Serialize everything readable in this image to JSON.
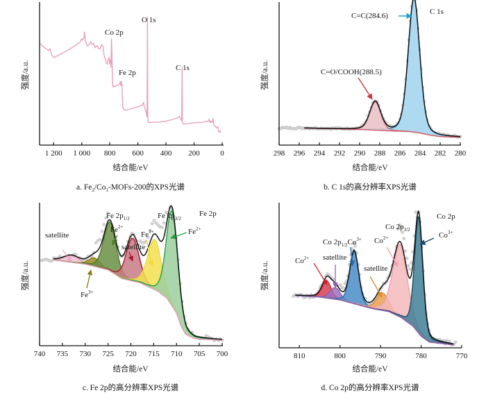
{
  "figure": {
    "y_axis_label": "强度/a.u.",
    "x_axis_label": "结合能/eV"
  },
  "chart_data": [
    {
      "id": "a",
      "type": "line",
      "title": "a.  Fe2/Co1-MOFs-200的XPS光谱",
      "caption_parts": [
        "a.  Fe",
        "2",
        "/Co",
        "1",
        "-MOFs-200的XPS光谱"
      ],
      "xlabel": "结合能/eV",
      "ylabel": "强度/a.u.",
      "xlim": [
        1300,
        0
      ],
      "xticks": [
        1200,
        1000,
        800,
        600,
        400,
        200,
        0
      ],
      "xtick_labels": [
        "1 200",
        "1 000",
        "800",
        "600",
        "400",
        "200",
        "0"
      ],
      "color": "#e8a2bd",
      "series": [
        {
          "name": "survey",
          "x": [
            1300,
            1280,
            1250,
            1235,
            1225,
            1215,
            1200,
            1150,
            1100,
            1050,
            1010,
            1000,
            995,
            985,
            980,
            975,
            960,
            950,
            935,
            925,
            915,
            905,
            890,
            880,
            870,
            858,
            850,
            840,
            832,
            825,
            818,
            812,
            806,
            800,
            796,
            792,
            788,
            784,
            782,
            780,
            778,
            775,
            770,
            765,
            760,
            740,
            730,
            725,
            722,
            718,
            714,
            711,
            708,
            705,
            700,
            680,
            650,
            600,
            570,
            560,
            555,
            550,
            545,
            540,
            535,
            532,
            530,
            528,
            525,
            520,
            500,
            450,
            400,
            350,
            320,
            305,
            295,
            288,
            285,
            283,
            280,
            275,
            260,
            230,
            200,
            150,
            120,
            105,
            100,
            95,
            85,
            80,
            72,
            66,
            64,
            62,
            58,
            50,
            40,
            30,
            25,
            20,
            15,
            10
          ],
          "y": [
            0.72,
            0.7,
            0.68,
            0.67,
            0.68,
            0.64,
            0.62,
            0.64,
            0.67,
            0.7,
            0.73,
            0.75,
            0.74,
            0.76,
            0.8,
            0.74,
            0.7,
            0.71,
            0.73,
            0.71,
            0.72,
            0.69,
            0.7,
            0.68,
            0.68,
            0.71,
            0.7,
            0.63,
            0.61,
            0.58,
            0.57,
            0.6,
            0.62,
            0.57,
            0.6,
            0.55,
            0.75,
            0.6,
            0.52,
            0.42,
            0.42,
            0.41,
            0.42,
            0.41,
            0.42,
            0.42,
            0.43,
            0.45,
            0.42,
            0.45,
            0.43,
            0.35,
            0.28,
            0.26,
            0.25,
            0.25,
            0.26,
            0.27,
            0.28,
            0.3,
            0.27,
            0.26,
            0.25,
            0.22,
            0.2,
            0.9,
            0.25,
            0.17,
            0.16,
            0.16,
            0.16,
            0.165,
            0.17,
            0.18,
            0.19,
            0.2,
            0.18,
            0.17,
            0.55,
            0.16,
            0.15,
            0.15,
            0.15,
            0.155,
            0.16,
            0.16,
            0.165,
            0.165,
            0.17,
            0.18,
            0.16,
            0.17,
            0.16,
            0.18,
            0.19,
            0.15,
            0.14,
            0.13,
            0.12,
            0.13,
            0.1,
            0.09,
            0.1,
            0.09
          ]
        }
      ],
      "annotations": [
        {
          "text": "Co 2p",
          "x": 780
        },
        {
          "text": "Fe 2p",
          "x": 712
        },
        {
          "text": "O 1s",
          "x": 531
        },
        {
          "text": "C 1s",
          "x": 285
        }
      ]
    },
    {
      "id": "b",
      "type": "area",
      "title": "b.  C 1s的高分辨率XPS光谱",
      "xlabel": "结合能/eV",
      "ylabel": "强度/a.u.",
      "xlim": [
        298,
        280
      ],
      "xticks": [
        298,
        296,
        294,
        292,
        290,
        288,
        286,
        284,
        282,
        280
      ],
      "xtick_labels": [
        "298",
        "296",
        "294",
        "292",
        "290",
        "288",
        "286",
        "284",
        "282",
        "280"
      ],
      "series": [
        {
          "name": "C=C(284.6)",
          "center": 284.6,
          "height": 0.95,
          "fwhm": 1.35,
          "color": "#1f9ed8",
          "fill": "#9fd3ef"
        },
        {
          "name": "C=O/COOH(288.5)",
          "center": 288.45,
          "height": 0.2,
          "fwhm": 1.3,
          "color": "#c8707a",
          "fill": "#e8c0c4"
        }
      ],
      "background": {
        "x": [
          295.5,
          290,
          287,
          285,
          284,
          283,
          282,
          280
        ],
        "y": [
          0.12,
          0.11,
          0.1,
          0.095,
          0.085,
          0.07,
          0.06,
          0.055
        ]
      },
      "annotations": [
        {
          "text": "C 1s"
        },
        {
          "text": "C=C(284.6)",
          "arrow_color": "#1f9ed8"
        },
        {
          "text": "C=O/COOH(288.5)",
          "arrow_color": "#d03040"
        }
      ]
    },
    {
      "id": "c",
      "type": "area",
      "title": "c.  Fe 2p的高分辨率XPS光谱",
      "xlabel": "结合能/eV",
      "ylabel": "强度/a.u.",
      "xlim": [
        740,
        700
      ],
      "xticks": [
        740,
        735,
        730,
        725,
        720,
        715,
        710,
        705,
        700
      ],
      "xtick_labels": [
        "740",
        "735",
        "730",
        "725",
        "720",
        "715",
        "710",
        "705",
        "700"
      ],
      "background": {
        "x": [
          737,
          730,
          725,
          722,
          718,
          714,
          712,
          710,
          709,
          708,
          706,
          704,
          700
        ],
        "y": [
          0.6,
          0.57,
          0.53,
          0.47,
          0.44,
          0.38,
          0.33,
          0.23,
          0.14,
          0.08,
          0.05,
          0.045,
          0.04
        ]
      },
      "series": [
        {
          "name": "satellite",
          "center": 733.0,
          "height": 0.045,
          "fwhm": 4.0,
          "color": "#e59ab8",
          "fill": "#f2c4d6"
        },
        {
          "name": "Fe3+ (2p1/2)",
          "center": 728.0,
          "height": 0.06,
          "fwhm": 3.0,
          "color": "#8a7a10",
          "fill": "#9b8a20"
        },
        {
          "name": "Fe2+ (2p1/2)",
          "center": 724.6,
          "height": 0.34,
          "fwhm": 3.2,
          "color": "#4d7a2a",
          "fill": "#6a8f45"
        },
        {
          "name": "satellite",
          "center": 719.6,
          "height": 0.3,
          "fwhm": 3.4,
          "color": "#b01030",
          "fill": "#c87a84"
        },
        {
          "name": "Fe3+ (2p3/2)",
          "center": 714.8,
          "height": 0.35,
          "fwhm": 3.6,
          "color": "#f0d838",
          "fill": "#f2e050"
        },
        {
          "name": "Fe2+ (2p3/2)",
          "center": 711.0,
          "height": 0.66,
          "fwhm": 3.0,
          "color": "#22a040",
          "fill": "#9ccf9f"
        }
      ],
      "annotations": [
        {
          "text": "Fe 2p"
        },
        {
          "text": "Fe 2p",
          "sub": "1/2"
        },
        {
          "text": "Fe 2p",
          "sub": "3/2"
        },
        {
          "text": "satellite",
          "arrow_color": "#f0a8c8"
        },
        {
          "text": "Fe",
          "sup": "2+",
          "arrow_color": "#4d7a2a"
        },
        {
          "text": "satellite",
          "arrow_color": "#b01030"
        },
        {
          "text": "Fe",
          "sup": "3+",
          "arrow_color": "#f0d838"
        },
        {
          "text": "Fe",
          "sup": "2+",
          "arrow_color": "#22a040"
        },
        {
          "text": "Fe",
          "sup": "3+",
          "arrow_color": "#8a7a10"
        }
      ]
    },
    {
      "id": "d",
      "type": "area",
      "title": "d.  Co 2p的高分辨率XPS光谱",
      "xlabel": "结合能/eV",
      "ylabel": "强度/a.u.",
      "xlim": [
        815,
        770
      ],
      "xticks": [
        810,
        800,
        790,
        780,
        770
      ],
      "xtick_labels": [
        "810",
        "800",
        "790",
        "780",
        "770"
      ],
      "background": {
        "x": [
          811,
          805,
          800,
          796,
          792,
          788,
          785,
          782,
          780,
          778,
          775,
          772
        ],
        "y": [
          0.36,
          0.35,
          0.33,
          0.3,
          0.27,
          0.25,
          0.21,
          0.15,
          0.08,
          0.04,
          0.03,
          0.02
        ]
      },
      "series": [
        {
          "name": "Co2+ (2p1/2)",
          "center": 803.3,
          "height": 0.12,
          "fwhm": 2.6,
          "color": "#d02030",
          "fill": "#d84050"
        },
        {
          "name": "satellite",
          "center": 801.2,
          "height": 0.08,
          "fwhm": 3.0,
          "color": "#9060b0",
          "fill": "#a070c0"
        },
        {
          "name": "Co 2p1/2 Co3+",
          "center": 796.5,
          "height": 0.36,
          "fwhm": 2.6,
          "color": "#1f6fb0",
          "fill": "#4a8cc8"
        },
        {
          "name": "satellite",
          "center": 789.5,
          "height": 0.12,
          "fwhm": 3.5,
          "color": "#e08a20",
          "fill": "#e8a050"
        },
        {
          "name": "Co2+ (2p3/2)",
          "center": 785.2,
          "height": 0.5,
          "fwhm": 4.2,
          "color": "#f0a0a8",
          "fill": "#f4b8bc"
        },
        {
          "name": "Co3+ (2p3/2)",
          "center": 780.6,
          "height": 0.8,
          "fwhm": 2.4,
          "color": "#1f4a66",
          "fill": "#3f7f96"
        }
      ],
      "annotations": [
        {
          "text": "Co 2p"
        },
        {
          "text": "Co 2p",
          "sub": "3/2"
        },
        {
          "text": "Co 2p",
          "sub": "1/2",
          "after": "Co",
          "sup": "3+",
          "arrow_color": "#1f6fb0"
        },
        {
          "text": "Co",
          "sup": "2+",
          "arrow_color": "#d02030"
        },
        {
          "text": "satellite",
          "arrow_color": "#9060b0"
        },
        {
          "text": "satellite",
          "arrow_color": "#e08a20"
        },
        {
          "text": "Co",
          "sup": "2+",
          "arrow_color": "#f0a0a8"
        },
        {
          "text": "Co",
          "sup": "3+",
          "arrow_color": "#1f4a66"
        }
      ]
    }
  ]
}
